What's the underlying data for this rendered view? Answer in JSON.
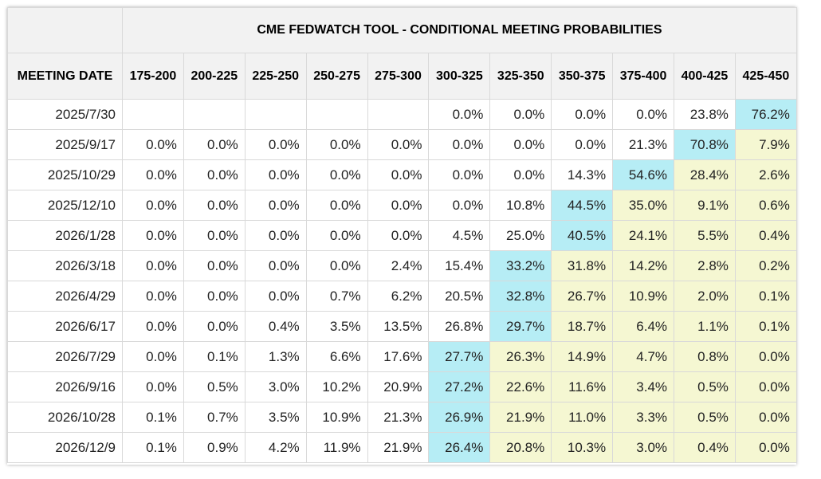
{
  "title": "CME FEDWATCH TOOL - CONDITIONAL MEETING PROBABILITIES",
  "date_header": "MEETING DATE",
  "ranges": [
    "175-200",
    "200-225",
    "225-250",
    "250-275",
    "275-300",
    "300-325",
    "325-350",
    "350-375",
    "375-400",
    "400-425",
    "425-450"
  ],
  "colors": {
    "highlight_max": "#b6edf5",
    "above_max": "#f5f7d2",
    "header_bg": "#f2f2f2"
  },
  "rows": [
    {
      "date": "2025/7/30",
      "cells": [
        [
          "",
          "w"
        ],
        [
          "",
          "w"
        ],
        [
          "",
          "w"
        ],
        [
          "",
          "w"
        ],
        [
          "",
          "w"
        ],
        [
          "0.0%",
          "w"
        ],
        [
          "0.0%",
          "w"
        ],
        [
          "0.0%",
          "w"
        ],
        [
          "0.0%",
          "w"
        ],
        [
          "23.8%",
          "w"
        ],
        [
          "76.2%",
          "c"
        ]
      ]
    },
    {
      "date": "2025/9/17",
      "cells": [
        [
          "0.0%",
          "w"
        ],
        [
          "0.0%",
          "w"
        ],
        [
          "0.0%",
          "w"
        ],
        [
          "0.0%",
          "w"
        ],
        [
          "0.0%",
          "w"
        ],
        [
          "0.0%",
          "w"
        ],
        [
          "0.0%",
          "w"
        ],
        [
          "0.0%",
          "w"
        ],
        [
          "21.3%",
          "w"
        ],
        [
          "70.8%",
          "c"
        ],
        [
          "7.9%",
          "y"
        ]
      ]
    },
    {
      "date": "2025/10/29",
      "cells": [
        [
          "0.0%",
          "w"
        ],
        [
          "0.0%",
          "w"
        ],
        [
          "0.0%",
          "w"
        ],
        [
          "0.0%",
          "w"
        ],
        [
          "0.0%",
          "w"
        ],
        [
          "0.0%",
          "w"
        ],
        [
          "0.0%",
          "w"
        ],
        [
          "14.3%",
          "w"
        ],
        [
          "54.6%",
          "c"
        ],
        [
          "28.4%",
          "y"
        ],
        [
          "2.6%",
          "y"
        ]
      ]
    },
    {
      "date": "2025/12/10",
      "cells": [
        [
          "0.0%",
          "w"
        ],
        [
          "0.0%",
          "w"
        ],
        [
          "0.0%",
          "w"
        ],
        [
          "0.0%",
          "w"
        ],
        [
          "0.0%",
          "w"
        ],
        [
          "0.0%",
          "w"
        ],
        [
          "10.8%",
          "w"
        ],
        [
          "44.5%",
          "c"
        ],
        [
          "35.0%",
          "y"
        ],
        [
          "9.1%",
          "y"
        ],
        [
          "0.6%",
          "y"
        ]
      ]
    },
    {
      "date": "2026/1/28",
      "cells": [
        [
          "0.0%",
          "w"
        ],
        [
          "0.0%",
          "w"
        ],
        [
          "0.0%",
          "w"
        ],
        [
          "0.0%",
          "w"
        ],
        [
          "0.0%",
          "w"
        ],
        [
          "4.5%",
          "w"
        ],
        [
          "25.0%",
          "w"
        ],
        [
          "40.5%",
          "c"
        ],
        [
          "24.1%",
          "y"
        ],
        [
          "5.5%",
          "y"
        ],
        [
          "0.4%",
          "y"
        ]
      ]
    },
    {
      "date": "2026/3/18",
      "cells": [
        [
          "0.0%",
          "w"
        ],
        [
          "0.0%",
          "w"
        ],
        [
          "0.0%",
          "w"
        ],
        [
          "0.0%",
          "w"
        ],
        [
          "2.4%",
          "w"
        ],
        [
          "15.4%",
          "w"
        ],
        [
          "33.2%",
          "c"
        ],
        [
          "31.8%",
          "y"
        ],
        [
          "14.2%",
          "y"
        ],
        [
          "2.8%",
          "y"
        ],
        [
          "0.2%",
          "y"
        ]
      ]
    },
    {
      "date": "2026/4/29",
      "cells": [
        [
          "0.0%",
          "w"
        ],
        [
          "0.0%",
          "w"
        ],
        [
          "0.0%",
          "w"
        ],
        [
          "0.7%",
          "w"
        ],
        [
          "6.2%",
          "w"
        ],
        [
          "20.5%",
          "w"
        ],
        [
          "32.8%",
          "c"
        ],
        [
          "26.7%",
          "y"
        ],
        [
          "10.9%",
          "y"
        ],
        [
          "2.0%",
          "y"
        ],
        [
          "0.1%",
          "y"
        ]
      ]
    },
    {
      "date": "2026/6/17",
      "cells": [
        [
          "0.0%",
          "w"
        ],
        [
          "0.0%",
          "w"
        ],
        [
          "0.4%",
          "w"
        ],
        [
          "3.5%",
          "w"
        ],
        [
          "13.5%",
          "w"
        ],
        [
          "26.8%",
          "w"
        ],
        [
          "29.7%",
          "c"
        ],
        [
          "18.7%",
          "y"
        ],
        [
          "6.4%",
          "y"
        ],
        [
          "1.1%",
          "y"
        ],
        [
          "0.1%",
          "y"
        ]
      ]
    },
    {
      "date": "2026/7/29",
      "cells": [
        [
          "0.0%",
          "w"
        ],
        [
          "0.1%",
          "w"
        ],
        [
          "1.3%",
          "w"
        ],
        [
          "6.6%",
          "w"
        ],
        [
          "17.6%",
          "w"
        ],
        [
          "27.7%",
          "c"
        ],
        [
          "26.3%",
          "y"
        ],
        [
          "14.9%",
          "y"
        ],
        [
          "4.7%",
          "y"
        ],
        [
          "0.8%",
          "y"
        ],
        [
          "0.0%",
          "y"
        ]
      ]
    },
    {
      "date": "2026/9/16",
      "cells": [
        [
          "0.0%",
          "w"
        ],
        [
          "0.5%",
          "w"
        ],
        [
          "3.0%",
          "w"
        ],
        [
          "10.2%",
          "w"
        ],
        [
          "20.9%",
          "w"
        ],
        [
          "27.2%",
          "c"
        ],
        [
          "22.6%",
          "y"
        ],
        [
          "11.6%",
          "y"
        ],
        [
          "3.4%",
          "y"
        ],
        [
          "0.5%",
          "y"
        ],
        [
          "0.0%",
          "y"
        ]
      ]
    },
    {
      "date": "2026/10/28",
      "cells": [
        [
          "0.1%",
          "w"
        ],
        [
          "0.7%",
          "w"
        ],
        [
          "3.5%",
          "w"
        ],
        [
          "10.9%",
          "w"
        ],
        [
          "21.3%",
          "w"
        ],
        [
          "26.9%",
          "c"
        ],
        [
          "21.9%",
          "y"
        ],
        [
          "11.0%",
          "y"
        ],
        [
          "3.3%",
          "y"
        ],
        [
          "0.5%",
          "y"
        ],
        [
          "0.0%",
          "y"
        ]
      ]
    },
    {
      "date": "2026/12/9",
      "cells": [
        [
          "0.1%",
          "w"
        ],
        [
          "0.9%",
          "w"
        ],
        [
          "4.2%",
          "w"
        ],
        [
          "11.9%",
          "w"
        ],
        [
          "21.9%",
          "w"
        ],
        [
          "26.4%",
          "c"
        ],
        [
          "20.8%",
          "y"
        ],
        [
          "10.3%",
          "y"
        ],
        [
          "3.0%",
          "y"
        ],
        [
          "0.4%",
          "y"
        ],
        [
          "0.0%",
          "y"
        ]
      ]
    }
  ]
}
